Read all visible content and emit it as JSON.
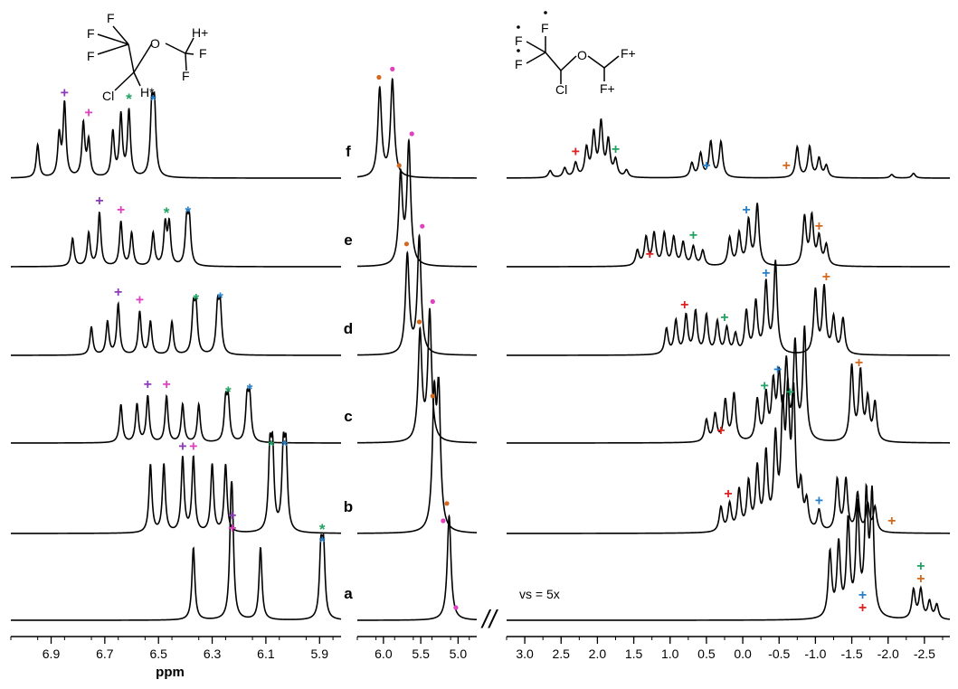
{
  "chart_data": {
    "type": "line",
    "panels": [
      {
        "id": "left",
        "xlabel": "ppm",
        "xlim": [
          7.05,
          5.82
        ],
        "ticks": [
          6.9,
          6.7,
          6.5,
          6.3,
          6.1,
          5.9
        ],
        "tick_labels": [
          "6.9",
          "6.7",
          "6.5",
          "6.3",
          "6.1",
          "5.9"
        ]
      },
      {
        "id": "middle",
        "xlabel": "",
        "xlim": [
          6.35,
          4.75
        ],
        "ticks": [
          6.0,
          5.5,
          5.0
        ],
        "tick_labels": [
          "6.0",
          "5.5",
          "5.0"
        ]
      },
      {
        "id": "right",
        "xlabel": "",
        "xlim": [
          3.25,
          -2.85
        ],
        "ticks": [
          3.0,
          2.5,
          2.0,
          1.5,
          1.0,
          0.5,
          0.0,
          -0.5,
          -1.0,
          -1.5,
          -2.0,
          -2.5
        ],
        "tick_labels": [
          "3.0",
          "2.5",
          "2.0",
          "1.5",
          "1.0",
          "0.5",
          "0.0",
          "-0.5",
          "-1.0",
          "-1.5",
          "-2.0",
          "-2.5"
        ]
      }
    ],
    "rows": [
      "f",
      "e",
      "d",
      "c",
      "b",
      "a"
    ],
    "spectra": {
      "left": {
        "f": [
          [
            6.95,
            0.28
          ],
          [
            6.87,
            0.35
          ],
          [
            6.85,
            0.62
          ],
          [
            6.78,
            0.45
          ],
          [
            6.76,
            0.3
          ],
          [
            6.67,
            0.38
          ],
          [
            6.64,
            0.52
          ],
          [
            6.61,
            0.56
          ],
          [
            6.525,
            0.55
          ],
          [
            6.515,
            0.55
          ]
        ],
        "e": [
          [
            6.82,
            0.22
          ],
          [
            6.76,
            0.26
          ],
          [
            6.72,
            0.42
          ],
          [
            6.64,
            0.35
          ],
          [
            6.6,
            0.26
          ],
          [
            6.52,
            0.26
          ],
          [
            6.475,
            0.32
          ],
          [
            6.46,
            0.32
          ],
          [
            6.395,
            0.33
          ],
          [
            6.385,
            0.33
          ]
        ],
        "d": [
          [
            6.75,
            0.22
          ],
          [
            6.69,
            0.26
          ],
          [
            6.65,
            0.4
          ],
          [
            6.57,
            0.34
          ],
          [
            6.53,
            0.26
          ],
          [
            6.45,
            0.26
          ],
          [
            6.37,
            0.34
          ],
          [
            6.36,
            0.34
          ],
          [
            6.28,
            0.35
          ],
          [
            6.27,
            0.35
          ]
        ],
        "c": [
          [
            6.64,
            0.28
          ],
          [
            6.58,
            0.28
          ],
          [
            6.54,
            0.34
          ],
          [
            6.47,
            0.34
          ],
          [
            6.41,
            0.28
          ],
          [
            6.35,
            0.28
          ],
          [
            6.25,
            0.28
          ],
          [
            6.24,
            0.28
          ],
          [
            6.17,
            0.3
          ],
          [
            6.16,
            0.3
          ]
        ],
        "b": [
          [
            6.53,
            0.5
          ],
          [
            6.48,
            0.5
          ],
          [
            6.41,
            0.55
          ],
          [
            6.37,
            0.55
          ],
          [
            6.3,
            0.5
          ],
          [
            6.25,
            0.5
          ],
          [
            6.085,
            0.55
          ],
          [
            6.075,
            0.55
          ],
          [
            6.035,
            0.55
          ],
          [
            6.025,
            0.55
          ]
        ],
        "a": [
          [
            6.37,
            0.5
          ],
          [
            6.23,
            0.55
          ],
          [
            6.225,
            0.55
          ],
          [
            6.12,
            0.5
          ],
          [
            5.895,
            0.45
          ],
          [
            5.885,
            0.45
          ]
        ]
      },
      "middle": {
        "f": [
          [
            6.05,
            0.75
          ],
          [
            5.88,
            0.82
          ]
        ],
        "e": [
          [
            5.77,
            0.7
          ],
          [
            5.66,
            0.95
          ]
        ],
        "d": [
          [
            5.68,
            0.78
          ],
          [
            5.52,
            0.92
          ]
        ],
        "c": [
          [
            5.51,
            0.8
          ],
          [
            5.38,
            0.95
          ]
        ],
        "b": [
          [
            5.32,
            0.92
          ],
          [
            5.26,
            0.98
          ]
        ],
        "a": [
          [
            5.12,
            0.72
          ]
        ]
      },
      "right": {
        "f": [
          [
            2.65,
            0.06
          ],
          [
            2.45,
            0.08
          ],
          [
            2.3,
            0.12
          ],
          [
            2.15,
            0.24
          ],
          [
            2.05,
            0.36
          ],
          [
            1.95,
            0.45
          ],
          [
            1.85,
            0.3
          ],
          [
            1.75,
            0.14
          ],
          [
            1.6,
            0.06
          ],
          [
            0.7,
            0.12
          ],
          [
            0.58,
            0.2
          ],
          [
            0.44,
            0.3
          ],
          [
            0.3,
            0.3
          ],
          [
            -0.75,
            0.26
          ],
          [
            -0.92,
            0.26
          ],
          [
            -1.05,
            0.16
          ],
          [
            -1.15,
            0.1
          ],
          [
            -2.05,
            0.03
          ],
          [
            -2.35,
            0.04
          ]
        ],
        "e": [
          [
            1.45,
            0.12
          ],
          [
            1.33,
            0.22
          ],
          [
            1.22,
            0.25
          ],
          [
            1.08,
            0.25
          ],
          [
            0.95,
            0.22
          ],
          [
            0.82,
            0.18
          ],
          [
            0.68,
            0.15
          ],
          [
            0.55,
            0.12
          ],
          [
            0.18,
            0.22
          ],
          [
            0.05,
            0.25
          ],
          [
            -0.08,
            0.35
          ],
          [
            -0.2,
            0.48
          ],
          [
            -0.85,
            0.38
          ],
          [
            -0.95,
            0.38
          ],
          [
            -1.05,
            0.22
          ],
          [
            -1.15,
            0.16
          ]
        ],
        "d": [
          [
            1.05,
            0.2
          ],
          [
            0.92,
            0.26
          ],
          [
            0.78,
            0.3
          ],
          [
            0.65,
            0.33
          ],
          [
            0.5,
            0.3
          ],
          [
            0.35,
            0.25
          ],
          [
            0.22,
            0.2
          ],
          [
            0.1,
            0.15
          ],
          [
            -0.05,
            0.33
          ],
          [
            -0.18,
            0.4
          ],
          [
            -0.32,
            0.55
          ],
          [
            -0.45,
            0.72
          ],
          [
            -1.0,
            0.5
          ],
          [
            -1.12,
            0.52
          ],
          [
            -1.25,
            0.28
          ],
          [
            -1.38,
            0.28
          ]
        ],
        "c": [
          [
            0.5,
            0.16
          ],
          [
            0.38,
            0.2
          ],
          [
            0.24,
            0.3
          ],
          [
            0.12,
            0.35
          ],
          [
            -0.2,
            0.3
          ],
          [
            -0.32,
            0.33
          ],
          [
            -0.42,
            0.4
          ],
          [
            -0.5,
            0.45
          ],
          [
            -0.6,
            0.55
          ],
          [
            -0.72,
            0.7
          ],
          [
            -0.85,
            0.82
          ],
          [
            -1.5,
            0.55
          ],
          [
            -1.62,
            0.5
          ],
          [
            -1.72,
            0.3
          ],
          [
            -1.82,
            0.28
          ]
        ],
        "b": [
          [
            0.3,
            0.18
          ],
          [
            0.18,
            0.2
          ],
          [
            0.05,
            0.3
          ],
          [
            -0.08,
            0.35
          ],
          [
            -0.2,
            0.45
          ],
          [
            -0.32,
            0.55
          ],
          [
            -0.45,
            0.65
          ],
          [
            -0.55,
            0.8
          ],
          [
            -0.62,
            0.9
          ],
          [
            -0.7,
            0.95
          ],
          [
            -0.8,
            0.3
          ],
          [
            -0.88,
            0.2
          ],
          [
            -1.05,
            0.15
          ],
          [
            -1.3,
            0.38
          ],
          [
            -1.42,
            0.38
          ],
          [
            -1.58,
            0.28
          ],
          [
            -1.72,
            0.2
          ],
          [
            -1.82,
            0.18
          ]
        ],
        "a": [
          [
            -1.2,
            0.45
          ],
          [
            -1.32,
            0.5
          ],
          [
            -1.45,
            0.65
          ],
          [
            -1.58,
            0.75
          ],
          [
            -1.7,
            0.8
          ],
          [
            -1.78,
            0.82
          ],
          [
            -2.35,
            0.2
          ],
          [
            -2.45,
            0.2
          ],
          [
            -2.57,
            0.12
          ],
          [
            -2.67,
            0.1
          ]
        ]
      }
    },
    "markers": {
      "left": {
        "f": [
          {
            "x": 6.85,
            "s": "+",
            "c": "#8e3ab8"
          },
          {
            "x": 6.76,
            "s": "+",
            "c": "#e040c0"
          },
          {
            "x": 6.61,
            "s": "*",
            "c": "#22a363"
          },
          {
            "x": 6.52,
            "s": "*",
            "c": "#2a80c8"
          }
        ],
        "e": [
          {
            "x": 6.72,
            "s": "+",
            "c": "#8e3ab8"
          },
          {
            "x": 6.64,
            "s": "+",
            "c": "#e040c0"
          },
          {
            "x": 6.47,
            "s": "*",
            "c": "#22a363"
          },
          {
            "x": 6.39,
            "s": "*",
            "c": "#2a80c8"
          }
        ],
        "d": [
          {
            "x": 6.65,
            "s": "+",
            "c": "#8e3ab8"
          },
          {
            "x": 6.57,
            "s": "+",
            "c": "#e040c0"
          },
          {
            "x": 6.36,
            "s": "*",
            "c": "#22a363"
          },
          {
            "x": 6.27,
            "s": "*",
            "c": "#2a80c8"
          }
        ],
        "c": [
          {
            "x": 6.54,
            "s": "+",
            "c": "#8e3ab8"
          },
          {
            "x": 6.47,
            "s": "+",
            "c": "#e040c0"
          },
          {
            "x": 6.24,
            "s": "*",
            "c": "#22a363"
          },
          {
            "x": 6.16,
            "s": "*",
            "c": "#2a80c8"
          }
        ],
        "b": [
          {
            "x": 6.41,
            "s": "+",
            "c": "#8e3ab8"
          },
          {
            "x": 6.37,
            "s": "+",
            "c": "#e040c0"
          },
          {
            "x": 6.08,
            "s": "*",
            "c": "#22a363"
          },
          {
            "x": 6.03,
            "s": "*",
            "c": "#2a80c8"
          }
        ],
        "a": [
          {
            "x": 6.225,
            "s": "+",
            "c": "#8e3ab8",
            "up": 1
          },
          {
            "x": 6.225,
            "s": "+",
            "c": "#e040c0"
          },
          {
            "x": 5.89,
            "s": "*",
            "c": "#22a363",
            "up": 1
          },
          {
            "x": 5.89,
            "s": "*",
            "c": "#2a80c8"
          }
        ]
      },
      "middle": {
        "f": [
          {
            "x": 6.06,
            "s": "dot",
            "c": "#d2691e"
          },
          {
            "x": 5.88,
            "s": "dot",
            "c": "#e040c0"
          }
        ],
        "e": [
          {
            "x": 5.79,
            "s": "dot",
            "c": "#d2691e"
          },
          {
            "x": 5.62,
            "s": "dot",
            "c": "#e040c0"
          }
        ],
        "d": [
          {
            "x": 5.69,
            "s": "dot",
            "c": "#d2691e"
          },
          {
            "x": 5.48,
            "s": "dot",
            "c": "#e040c0"
          }
        ],
        "c": [
          {
            "x": 5.52,
            "s": "dot",
            "c": "#d2691e"
          },
          {
            "x": 5.34,
            "s": "dot",
            "c": "#e040c0"
          }
        ],
        "b": [
          {
            "x": 5.34,
            "s": "dot",
            "c": "#d2691e"
          },
          {
            "x": 5.2,
            "s": "dot",
            "c": "#e040c0"
          }
        ],
        "a": [
          {
            "x": 5.15,
            "s": "dot",
            "c": "#d2691e"
          },
          {
            "x": 5.03,
            "s": "dot",
            "c": "#e040c0"
          }
        ]
      },
      "right": {
        "f": [
          {
            "x": 2.3,
            "s": "+",
            "c": "#e02020"
          },
          {
            "x": 1.75,
            "s": "+",
            "c": "#22a363"
          },
          {
            "x": 0.5,
            "s": "+",
            "c": "#2a80c8"
          },
          {
            "x": -0.6,
            "s": "+",
            "c": "#d2691e"
          }
        ],
        "e": [
          {
            "x": 1.28,
            "s": "+",
            "c": "#e02020"
          },
          {
            "x": 0.68,
            "s": "+",
            "c": "#22a363"
          },
          {
            "x": -0.05,
            "s": "+",
            "c": "#2a80c8"
          },
          {
            "x": -1.05,
            "s": "+",
            "c": "#d2691e"
          }
        ],
        "d": [
          {
            "x": 0.8,
            "s": "+",
            "c": "#e02020"
          },
          {
            "x": 0.25,
            "s": "+",
            "c": "#22a363"
          },
          {
            "x": -0.32,
            "s": "+",
            "c": "#2a80c8"
          },
          {
            "x": -1.15,
            "s": "+",
            "c": "#d2691e"
          }
        ],
        "c": [
          {
            "x": 0.3,
            "s": "+",
            "c": "#e02020"
          },
          {
            "x": -0.3,
            "s": "+",
            "c": "#22a363"
          },
          {
            "x": -0.48,
            "s": "+",
            "c": "#2a80c8"
          },
          {
            "x": -1.6,
            "s": "+",
            "c": "#d2691e"
          }
        ],
        "b": [
          {
            "x": 0.2,
            "s": "+",
            "c": "#e02020"
          },
          {
            "x": -0.65,
            "s": "+",
            "c": "#22a363"
          },
          {
            "x": -1.05,
            "s": "+",
            "c": "#2a80c8"
          },
          {
            "x": -2.05,
            "s": "+",
            "c": "#d2691e"
          }
        ],
        "a": [
          {
            "x": -1.65,
            "s": "+",
            "c": "#e02020"
          },
          {
            "x": -1.65,
            "s": "+",
            "c": "#2a80c8",
            "up": 1
          },
          {
            "x": -2.45,
            "s": "+",
            "c": "#d2691e"
          },
          {
            "x": -2.45,
            "s": "+",
            "c": "#22a363",
            "up": 1
          }
        ]
      }
    },
    "annotations": [
      {
        "text": "vs = 5x"
      },
      {
        "text": "//"
      }
    ],
    "structures": {
      "left": {
        "F": "F",
        "O": "O",
        "H_plus": "H+",
        "Cl": "Cl",
        "H_star": "H*"
      },
      "right": {
        "F": "F",
        "F_plus": "F+",
        "O": "O",
        "Cl": "Cl"
      }
    }
  }
}
